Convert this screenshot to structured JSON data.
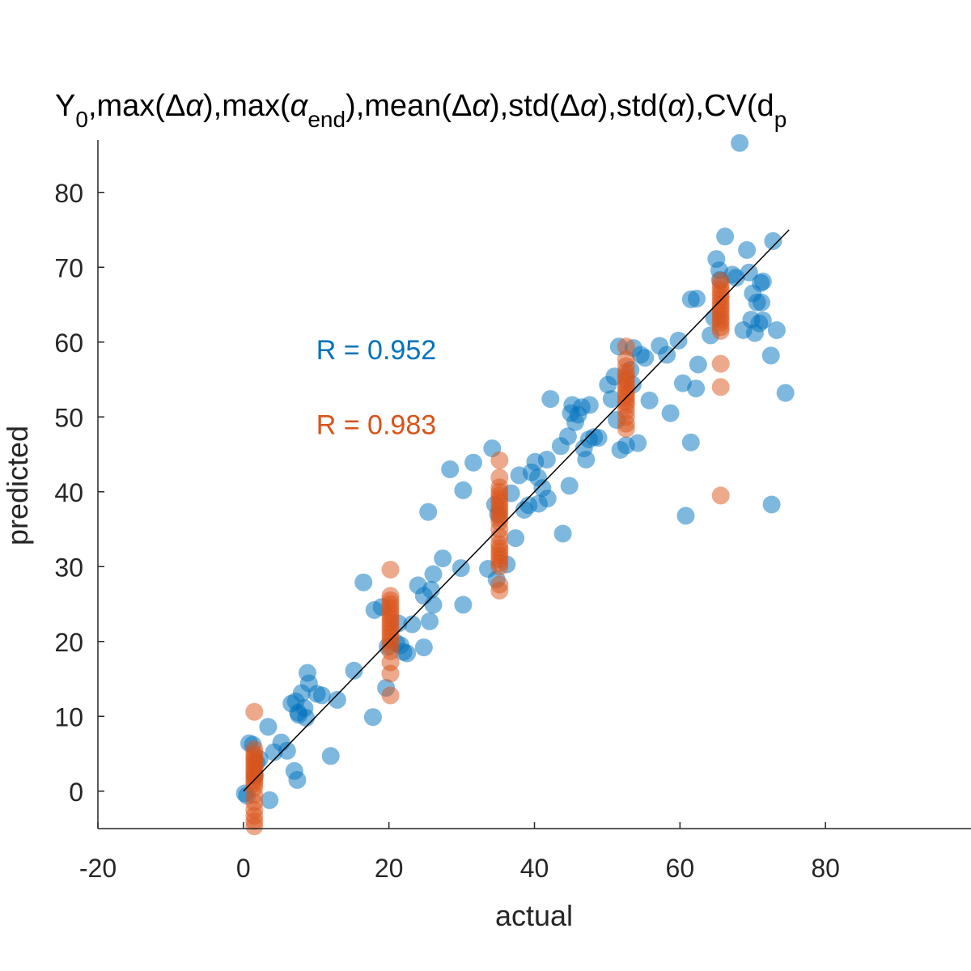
{
  "chart_data": {
    "type": "scatter",
    "title": {
      "parts": [
        {
          "text": "Y",
          "shift": 0
        },
        {
          "text": "0",
          "shift": 1
        },
        {
          "text": ",max(Δ",
          "shift": 0
        },
        {
          "text": "α",
          "shift": 0,
          "italic": true
        },
        {
          "text": "),max(",
          "shift": 0
        },
        {
          "text": "α",
          "shift": 0,
          "italic": true
        },
        {
          "text": "end",
          "shift": 1
        },
        {
          "text": "),mean(Δ",
          "shift": 0
        },
        {
          "text": "α",
          "shift": 0,
          "italic": true
        },
        {
          "text": "),std(Δ",
          "shift": 0
        },
        {
          "text": "α",
          "shift": 0,
          "italic": true
        },
        {
          "text": "),std(",
          "shift": 0
        },
        {
          "text": "α",
          "shift": 0,
          "italic": true
        },
        {
          "text": "),CV(d",
          "shift": 0
        },
        {
          "text": "p",
          "shift": 1
        }
      ]
    },
    "xlabel": "actual",
    "ylabel": "predicted",
    "xlim": [
      -20,
      100
    ],
    "ylim": [
      -5,
      87
    ],
    "xticks": [
      -20,
      0,
      20,
      40,
      60,
      80
    ],
    "yticks": [
      0,
      10,
      20,
      30,
      40,
      50,
      60,
      70,
      80
    ],
    "grid": false,
    "reference_line": {
      "x": [
        0,
        75
      ],
      "y": [
        0,
        75
      ],
      "color": "#000000"
    },
    "annotations": [
      {
        "text": "R = 0.952",
        "x": 10,
        "y": 59,
        "color": "#0072BD"
      },
      {
        "text": "R = 0.983",
        "x": 10,
        "y": 49,
        "color": "#D95319"
      }
    ],
    "series": [
      {
        "color": "#0072BD",
        "opacity": 0.5,
        "points": [
          [
            0.2,
            -0.3
          ],
          [
            0.5,
            -0.6
          ],
          [
            0.8,
            6.4
          ],
          [
            1.3,
            6.2
          ],
          [
            1.8,
            3.8
          ],
          [
            1.6,
            2.1
          ],
          [
            2.2,
            4.3
          ],
          [
            3.4,
            8.6
          ],
          [
            3.6,
            -1.2
          ],
          [
            4.2,
            5.2
          ],
          [
            5.2,
            6.5
          ],
          [
            6.0,
            5.4
          ],
          [
            6.6,
            11.7
          ],
          [
            7.0,
            2.7
          ],
          [
            7.2,
            12.0
          ],
          [
            7.4,
            1.5
          ],
          [
            7.5,
            10.5
          ],
          [
            7.6,
            10.2
          ],
          [
            8.0,
            13.1
          ],
          [
            8.4,
            11.1
          ],
          [
            8.6,
            9.8
          ],
          [
            8.8,
            15.8
          ],
          [
            9.0,
            14.4
          ],
          [
            10.1,
            13.0
          ],
          [
            10.8,
            12.8
          ],
          [
            12.0,
            4.7
          ],
          [
            12.9,
            12.2
          ],
          [
            15.2,
            16.1
          ],
          [
            16.5,
            27.9
          ],
          [
            17.8,
            9.9
          ],
          [
            18.0,
            24.2
          ],
          [
            19.6,
            13.8
          ],
          [
            19.0,
            24.6
          ],
          [
            19.8,
            19.3
          ],
          [
            21.0,
            19.8
          ],
          [
            21.3,
            22.4
          ],
          [
            21.6,
            19.5
          ],
          [
            22.0,
            18.6
          ],
          [
            22.5,
            18.4
          ],
          [
            23.2,
            22.3
          ],
          [
            24.0,
            27.5
          ],
          [
            24.8,
            26.1
          ],
          [
            24.8,
            19.2
          ],
          [
            25.4,
            37.3
          ],
          [
            25.6,
            22.7
          ],
          [
            25.8,
            26.9
          ],
          [
            26.1,
            29.0
          ],
          [
            26.1,
            24.9
          ],
          [
            27.4,
            31.1
          ],
          [
            28.4,
            43.0
          ],
          [
            29.9,
            29.8
          ],
          [
            30.2,
            40.2
          ],
          [
            30.2,
            24.9
          ],
          [
            31.6,
            43.9
          ],
          [
            33.6,
            29.7
          ],
          [
            34.2,
            45.8
          ],
          [
            34.6,
            38.3
          ],
          [
            34.8,
            28.3
          ],
          [
            35.0,
            37.0
          ],
          [
            36.2,
            30.3
          ],
          [
            36.8,
            39.8
          ],
          [
            37.4,
            33.8
          ],
          [
            37.9,
            42.2
          ],
          [
            38.6,
            37.6
          ],
          [
            39.2,
            38.2
          ],
          [
            39.6,
            42.6
          ],
          [
            40.1,
            44.0
          ],
          [
            40.5,
            41.9
          ],
          [
            40.6,
            38.4
          ],
          [
            41.1,
            40.5
          ],
          [
            41.7,
            44.3
          ],
          [
            41.8,
            39.1
          ],
          [
            42.2,
            52.4
          ],
          [
            43.6,
            46.1
          ],
          [
            43.9,
            34.4
          ],
          [
            44.6,
            47.4
          ],
          [
            44.8,
            40.8
          ],
          [
            45.0,
            50.5
          ],
          [
            45.2,
            51.6
          ],
          [
            45.6,
            49.3
          ],
          [
            46.0,
            50.3
          ],
          [
            46.5,
            51.3
          ],
          [
            46.8,
            45.8
          ],
          [
            47.1,
            44.3
          ],
          [
            47.5,
            47.0
          ],
          [
            47.6,
            51.6
          ],
          [
            48.2,
            47.3
          ],
          [
            48.8,
            47.2
          ],
          [
            50.1,
            54.3
          ],
          [
            50.6,
            52.4
          ],
          [
            51.0,
            55.4
          ],
          [
            51.3,
            49.6
          ],
          [
            51.6,
            59.4
          ],
          [
            51.8,
            45.6
          ],
          [
            52.6,
            46.2
          ],
          [
            53.2,
            56.3
          ],
          [
            53.6,
            59.2
          ],
          [
            54.2,
            46.5
          ],
          [
            54.6,
            58.3
          ],
          [
            55.2,
            57.9
          ],
          [
            55.8,
            52.2
          ],
          [
            57.2,
            59.5
          ],
          [
            58.2,
            58.3
          ],
          [
            58.7,
            50.5
          ],
          [
            59.8,
            60.2
          ],
          [
            60.4,
            54.5
          ],
          [
            60.8,
            36.8
          ],
          [
            61.5,
            46.6
          ],
          [
            61.5,
            65.7
          ],
          [
            62.3,
            65.8
          ],
          [
            62.2,
            53.8
          ],
          [
            62.5,
            57.0
          ],
          [
            64.2,
            60.9
          ],
          [
            64.7,
            63.2
          ],
          [
            65.0,
            71.1
          ],
          [
            65.4,
            69.6
          ],
          [
            66.2,
            74.1
          ],
          [
            67.2,
            69.0
          ],
          [
            67.7,
            68.6
          ],
          [
            68.2,
            86.6
          ],
          [
            68.7,
            61.6
          ],
          [
            69.2,
            72.3
          ],
          [
            69.5,
            69.3
          ],
          [
            69.8,
            63.0
          ],
          [
            70.0,
            66.5
          ],
          [
            70.3,
            61.2
          ],
          [
            70.6,
            65.3
          ],
          [
            70.9,
            62.5
          ],
          [
            71.1,
            67.9
          ],
          [
            71.2,
            65.3
          ],
          [
            71.4,
            62.9
          ],
          [
            72.5,
            58.2
          ],
          [
            72.6,
            38.3
          ],
          [
            72.8,
            73.5
          ],
          [
            73.3,
            61.6
          ],
          [
            74.5,
            53.2
          ],
          [
            71.4,
            68.1
          ],
          [
            65.5,
            68.3
          ],
          [
            53.5,
            54.3
          ]
        ]
      },
      {
        "color": "#D95319",
        "opacity": 0.5,
        "points": [
          [
            1.5,
            10.6
          ],
          [
            1.5,
            5.6
          ],
          [
            1.5,
            5.0
          ],
          [
            1.5,
            4.6
          ],
          [
            1.5,
            4.2
          ],
          [
            1.5,
            3.8
          ],
          [
            1.5,
            3.4
          ],
          [
            1.5,
            3.0
          ],
          [
            1.5,
            2.6
          ],
          [
            1.5,
            2.2
          ],
          [
            1.5,
            1.8
          ],
          [
            1.5,
            1.4
          ],
          [
            1.5,
            1.0
          ],
          [
            1.5,
            0.5
          ],
          [
            1.5,
            -0.5
          ],
          [
            1.5,
            -1.5
          ],
          [
            1.5,
            -2.5
          ],
          [
            1.5,
            -3.3
          ],
          [
            1.5,
            -4.0
          ],
          [
            1.5,
            -4.7
          ],
          [
            20.2,
            29.6
          ],
          [
            20.2,
            26.1
          ],
          [
            20.2,
            25.5
          ],
          [
            20.2,
            25.0
          ],
          [
            20.2,
            24.5
          ],
          [
            20.2,
            24.0
          ],
          [
            20.2,
            23.5
          ],
          [
            20.2,
            23.0
          ],
          [
            20.2,
            22.5
          ],
          [
            20.2,
            22.0
          ],
          [
            20.2,
            21.5
          ],
          [
            20.2,
            21.0
          ],
          [
            20.2,
            20.5
          ],
          [
            20.2,
            20.0
          ],
          [
            20.2,
            19.4
          ],
          [
            20.2,
            18.7
          ],
          [
            20.2,
            17.2
          ],
          [
            20.2,
            15.7
          ],
          [
            20.2,
            12.8
          ],
          [
            35.2,
            44.2
          ],
          [
            35.2,
            41.9
          ],
          [
            35.2,
            40.6
          ],
          [
            35.2,
            40.0
          ],
          [
            35.2,
            39.5
          ],
          [
            35.2,
            39.0
          ],
          [
            35.2,
            38.5
          ],
          [
            35.2,
            38.0
          ],
          [
            35.2,
            37.5
          ],
          [
            35.2,
            37.0
          ],
          [
            35.2,
            36.5
          ],
          [
            35.2,
            36.0
          ],
          [
            35.2,
            35.0
          ],
          [
            35.2,
            34.0
          ],
          [
            35.2,
            33.0
          ],
          [
            35.2,
            32.5
          ],
          [
            35.2,
            32.0
          ],
          [
            35.2,
            31.5
          ],
          [
            35.2,
            31.0
          ],
          [
            35.2,
            30.5
          ],
          [
            35.2,
            30.0
          ],
          [
            35.2,
            27.6
          ],
          [
            35.2,
            26.8
          ],
          [
            52.6,
            59.4
          ],
          [
            52.6,
            57.7
          ],
          [
            52.6,
            56.8
          ],
          [
            52.6,
            56.0
          ],
          [
            52.6,
            55.5
          ],
          [
            52.6,
            55.0
          ],
          [
            52.6,
            54.5
          ],
          [
            52.6,
            54.0
          ],
          [
            52.6,
            53.5
          ],
          [
            52.6,
            53.0
          ],
          [
            52.6,
            52.5
          ],
          [
            52.6,
            52.0
          ],
          [
            52.6,
            51.5
          ],
          [
            52.6,
            50.8
          ],
          [
            52.6,
            50.0
          ],
          [
            52.6,
            49.1
          ],
          [
            52.6,
            48.4
          ],
          [
            65.6,
            68.2
          ],
          [
            65.6,
            67.6
          ],
          [
            65.6,
            67.0
          ],
          [
            65.6,
            66.5
          ],
          [
            65.6,
            66.0
          ],
          [
            65.6,
            65.5
          ],
          [
            65.6,
            65.0
          ],
          [
            65.6,
            64.5
          ],
          [
            65.6,
            64.0
          ],
          [
            65.6,
            63.5
          ],
          [
            65.6,
            63.0
          ],
          [
            65.6,
            62.6
          ],
          [
            65.6,
            62.0
          ],
          [
            65.6,
            61.5
          ],
          [
            65.6,
            57.1
          ],
          [
            65.6,
            54.0
          ],
          [
            65.6,
            39.5
          ]
        ]
      }
    ]
  }
}
